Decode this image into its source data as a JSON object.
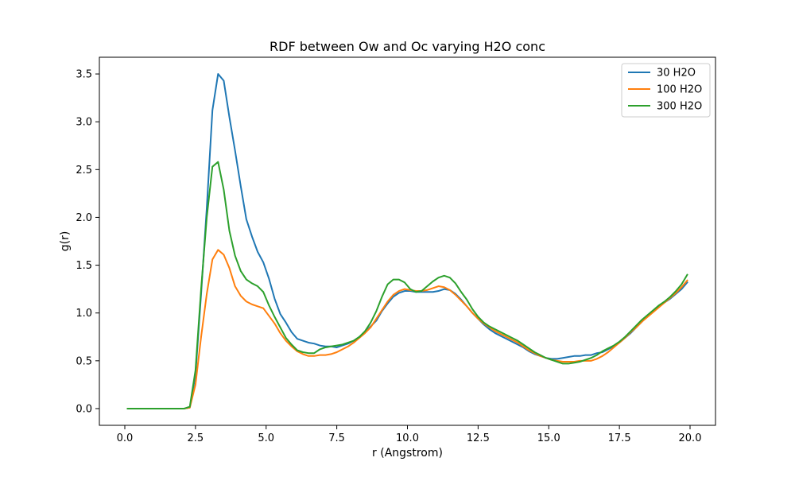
{
  "chart_data": {
    "type": "line",
    "title": "RDF between Ow and Oc varying H2O conc",
    "xlabel": "r (Angstrom)",
    "ylabel": "g(r)",
    "xlim": [
      -0.9,
      20.9
    ],
    "ylim": [
      -0.175,
      3.675
    ],
    "xticks": [
      0.0,
      2.5,
      5.0,
      7.5,
      10.0,
      12.5,
      15.0,
      17.5,
      20.0
    ],
    "xtick_labels": [
      "0.0",
      "2.5",
      "5.0",
      "7.5",
      "10.0",
      "12.5",
      "15.0",
      "17.5",
      "20.0"
    ],
    "yticks": [
      0.0,
      0.5,
      1.0,
      1.5,
      2.0,
      2.5,
      3.0,
      3.5
    ],
    "ytick_labels": [
      "0.0",
      "0.5",
      "1.0",
      "1.5",
      "2.0",
      "2.5",
      "3.0",
      "3.5"
    ],
    "grid": false,
    "legend_position": "top-right",
    "x": [
      0.1,
      0.3,
      0.5,
      0.7,
      0.9,
      1.1,
      1.3,
      1.5,
      1.7,
      1.9,
      2.1,
      2.3,
      2.5,
      2.7,
      2.9,
      3.1,
      3.3,
      3.5,
      3.7,
      3.9,
      4.1,
      4.3,
      4.5,
      4.7,
      4.9,
      5.1,
      5.3,
      5.5,
      5.7,
      5.9,
      6.1,
      6.3,
      6.5,
      6.7,
      6.9,
      7.1,
      7.3,
      7.5,
      7.7,
      7.9,
      8.1,
      8.3,
      8.5,
      8.7,
      8.9,
      9.1,
      9.3,
      9.5,
      9.7,
      9.9,
      10.1,
      10.3,
      10.5,
      10.7,
      10.9,
      11.1,
      11.3,
      11.5,
      11.7,
      11.9,
      12.1,
      12.3,
      12.5,
      12.7,
      12.9,
      13.1,
      13.3,
      13.5,
      13.7,
      13.9,
      14.1,
      14.3,
      14.5,
      14.7,
      14.9,
      15.1,
      15.3,
      15.5,
      15.7,
      15.9,
      16.1,
      16.3,
      16.5,
      16.7,
      16.9,
      17.1,
      17.3,
      17.5,
      17.7,
      17.9,
      18.1,
      18.3,
      18.5,
      18.7,
      18.9,
      19.1,
      19.3,
      19.5,
      19.7,
      19.9
    ],
    "series": [
      {
        "name": "30 H2O",
        "color": "#1f77b4",
        "values": [
          0,
          0,
          0,
          0,
          0,
          0,
          0,
          0,
          0,
          0,
          0,
          0.01,
          0.35,
          1.2,
          2.1,
          3.12,
          3.5,
          3.43,
          3.05,
          2.7,
          2.33,
          1.98,
          1.8,
          1.64,
          1.53,
          1.36,
          1.15,
          0.99,
          0.9,
          0.8,
          0.73,
          0.71,
          0.69,
          0.68,
          0.66,
          0.65,
          0.65,
          0.64,
          0.66,
          0.68,
          0.71,
          0.75,
          0.8,
          0.86,
          0.92,
          1.02,
          1.1,
          1.17,
          1.21,
          1.23,
          1.23,
          1.22,
          1.22,
          1.22,
          1.22,
          1.23,
          1.25,
          1.24,
          1.2,
          1.14,
          1.07,
          1.0,
          0.94,
          0.88,
          0.83,
          0.79,
          0.76,
          0.73,
          0.7,
          0.67,
          0.64,
          0.6,
          0.57,
          0.55,
          0.53,
          0.52,
          0.52,
          0.53,
          0.54,
          0.55,
          0.55,
          0.56,
          0.56,
          0.58,
          0.59,
          0.62,
          0.65,
          0.69,
          0.74,
          0.79,
          0.85,
          0.91,
          0.97,
          1.02,
          1.07,
          1.11,
          1.15,
          1.2,
          1.25,
          1.32
        ]
      },
      {
        "name": "100 H2O",
        "color": "#ff7f0e",
        "values": [
          0,
          0,
          0,
          0,
          0,
          0,
          0,
          0,
          0,
          0,
          0,
          0.01,
          0.25,
          0.75,
          1.2,
          1.56,
          1.66,
          1.61,
          1.47,
          1.28,
          1.18,
          1.12,
          1.09,
          1.07,
          1.05,
          0.97,
          0.89,
          0.79,
          0.71,
          0.65,
          0.6,
          0.57,
          0.55,
          0.55,
          0.56,
          0.56,
          0.57,
          0.59,
          0.62,
          0.65,
          0.69,
          0.74,
          0.79,
          0.85,
          0.94,
          1.03,
          1.12,
          1.19,
          1.23,
          1.25,
          1.24,
          1.23,
          1.23,
          1.24,
          1.26,
          1.28,
          1.27,
          1.24,
          1.19,
          1.13,
          1.07,
          1.0,
          0.94,
          0.89,
          0.85,
          0.81,
          0.78,
          0.75,
          0.72,
          0.69,
          0.65,
          0.61,
          0.58,
          0.55,
          0.53,
          0.51,
          0.5,
          0.49,
          0.49,
          0.49,
          0.5,
          0.5,
          0.5,
          0.52,
          0.55,
          0.59,
          0.64,
          0.69,
          0.74,
          0.8,
          0.85,
          0.91,
          0.96,
          1.01,
          1.06,
          1.11,
          1.16,
          1.21,
          1.27,
          1.34
        ]
      },
      {
        "name": "300 H2O",
        "color": "#2ca02c",
        "values": [
          0,
          0,
          0,
          0,
          0,
          0,
          0,
          0,
          0,
          0,
          0,
          0.02,
          0.4,
          1.25,
          2.0,
          2.53,
          2.58,
          2.29,
          1.86,
          1.6,
          1.44,
          1.35,
          1.31,
          1.28,
          1.22,
          1.08,
          0.96,
          0.85,
          0.74,
          0.67,
          0.61,
          0.59,
          0.58,
          0.58,
          0.62,
          0.64,
          0.65,
          0.66,
          0.67,
          0.69,
          0.71,
          0.75,
          0.81,
          0.9,
          1.02,
          1.17,
          1.3,
          1.35,
          1.35,
          1.32,
          1.25,
          1.22,
          1.23,
          1.28,
          1.33,
          1.37,
          1.39,
          1.37,
          1.31,
          1.22,
          1.14,
          1.04,
          0.96,
          0.9,
          0.86,
          0.83,
          0.8,
          0.77,
          0.74,
          0.71,
          0.67,
          0.63,
          0.59,
          0.56,
          0.53,
          0.51,
          0.49,
          0.47,
          0.47,
          0.48,
          0.49,
          0.51,
          0.53,
          0.56,
          0.6,
          0.63,
          0.66,
          0.7,
          0.75,
          0.81,
          0.87,
          0.93,
          0.98,
          1.03,
          1.08,
          1.12,
          1.17,
          1.23,
          1.3,
          1.4
        ]
      }
    ]
  }
}
